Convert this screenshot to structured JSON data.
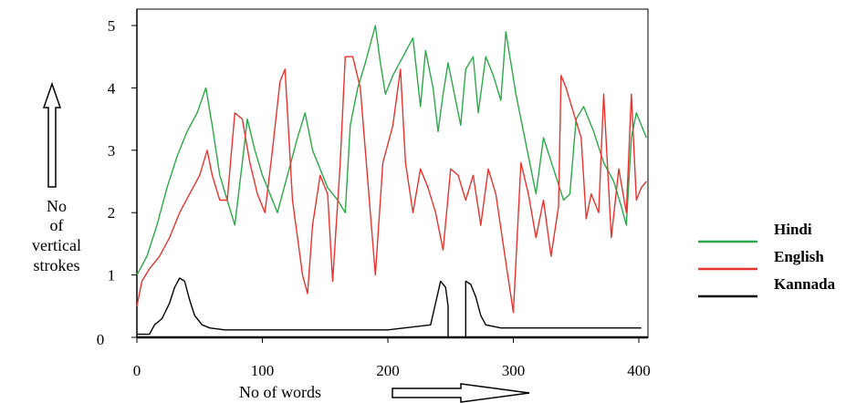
{
  "chart_data": {
    "type": "line",
    "ylabel_lines": [
      "No",
      "of",
      "vertical",
      "strokes"
    ],
    "xlabel": "No of words",
    "xlim": [
      0,
      400
    ],
    "ylim": [
      0,
      5
    ],
    "x_ticks": [
      {
        "value": 0,
        "label": "0"
      },
      {
        "value": 100,
        "label": "100"
      },
      {
        "value": 200,
        "label": "200"
      },
      {
        "value": 300,
        "label": "300"
      },
      {
        "value": 400,
        "label": "400"
      }
    ],
    "y_ticks": [
      {
        "value": 0,
        "label": "0"
      },
      {
        "value": 1,
        "label": "1"
      },
      {
        "value": 2,
        "label": "2"
      },
      {
        "value": 3,
        "label": "3"
      },
      {
        "value": 4,
        "label": "4"
      },
      {
        "value": 5,
        "label": "5"
      }
    ],
    "legend_position": "right",
    "grid": false,
    "series": [
      {
        "name": "Hindi",
        "color": "#2ca84a",
        "points": [
          [
            0,
            1.0
          ],
          [
            8,
            1.3
          ],
          [
            16,
            1.8
          ],
          [
            24,
            2.4
          ],
          [
            32,
            2.9
          ],
          [
            40,
            3.3
          ],
          [
            48,
            3.6
          ],
          [
            55,
            4.0
          ],
          [
            60,
            3.4
          ],
          [
            66,
            2.6
          ],
          [
            72,
            2.2
          ],
          [
            78,
            1.8
          ],
          [
            84,
            2.8
          ],
          [
            88,
            3.5
          ],
          [
            94,
            3.0
          ],
          [
            100,
            2.6
          ],
          [
            106,
            2.3
          ],
          [
            112,
            2.0
          ],
          [
            120,
            2.6
          ],
          [
            128,
            3.2
          ],
          [
            134,
            3.6
          ],
          [
            140,
            3.0
          ],
          [
            146,
            2.7
          ],
          [
            152,
            2.4
          ],
          [
            160,
            2.2
          ],
          [
            166,
            2.0
          ],
          [
            170,
            3.4
          ],
          [
            176,
            4.0
          ],
          [
            182,
            4.4
          ],
          [
            190,
            5.0
          ],
          [
            194,
            4.4
          ],
          [
            198,
            3.9
          ],
          [
            204,
            4.2
          ],
          [
            212,
            4.5
          ],
          [
            220,
            4.8
          ],
          [
            226,
            3.7
          ],
          [
            230,
            4.6
          ],
          [
            236,
            4.0
          ],
          [
            240,
            3.3
          ],
          [
            244,
            3.9
          ],
          [
            248,
            4.4
          ],
          [
            252,
            4.0
          ],
          [
            258,
            3.4
          ],
          [
            262,
            4.3
          ],
          [
            268,
            4.5
          ],
          [
            272,
            3.6
          ],
          [
            278,
            4.5
          ],
          [
            284,
            4.2
          ],
          [
            290,
            3.8
          ],
          [
            294,
            4.9
          ],
          [
            298,
            4.4
          ],
          [
            302,
            3.9
          ],
          [
            310,
            3.1
          ],
          [
            318,
            2.3
          ],
          [
            324,
            3.2
          ],
          [
            332,
            2.7
          ],
          [
            340,
            2.2
          ],
          [
            345,
            2.3
          ],
          [
            350,
            3.5
          ],
          [
            356,
            3.7
          ],
          [
            364,
            3.3
          ],
          [
            372,
            2.8
          ],
          [
            380,
            2.5
          ],
          [
            386,
            2.1
          ],
          [
            390,
            1.8
          ],
          [
            394,
            3.2
          ],
          [
            398,
            3.6
          ],
          [
            402,
            3.4
          ],
          [
            406,
            3.2
          ]
        ]
      },
      {
        "name": "English",
        "color": "#e8332e",
        "points": [
          [
            0,
            0.5
          ],
          [
            4,
            0.9
          ],
          [
            10,
            1.1
          ],
          [
            18,
            1.3
          ],
          [
            26,
            1.6
          ],
          [
            34,
            2.0
          ],
          [
            42,
            2.3
          ],
          [
            50,
            2.6
          ],
          [
            56,
            3.0
          ],
          [
            60,
            2.6
          ],
          [
            66,
            2.2
          ],
          [
            72,
            2.2
          ],
          [
            78,
            3.6
          ],
          [
            84,
            3.5
          ],
          [
            90,
            2.8
          ],
          [
            96,
            2.3
          ],
          [
            102,
            2.0
          ],
          [
            108,
            3.0
          ],
          [
            114,
            4.1
          ],
          [
            118,
            4.3
          ],
          [
            124,
            2.2
          ],
          [
            128,
            1.6
          ],
          [
            132,
            1.0
          ],
          [
            136,
            0.7
          ],
          [
            140,
            1.8
          ],
          [
            146,
            2.6
          ],
          [
            152,
            2.3
          ],
          [
            156,
            0.9
          ],
          [
            162,
            2.8
          ],
          [
            166,
            4.5
          ],
          [
            172,
            4.5
          ],
          [
            178,
            4.0
          ],
          [
            182,
            3.0
          ],
          [
            186,
            2.0
          ],
          [
            190,
            1.0
          ],
          [
            196,
            2.8
          ],
          [
            204,
            3.4
          ],
          [
            210,
            4.3
          ],
          [
            214,
            2.8
          ],
          [
            220,
            2.0
          ],
          [
            226,
            2.7
          ],
          [
            232,
            2.4
          ],
          [
            238,
            2.0
          ],
          [
            244,
            1.4
          ],
          [
            250,
            2.7
          ],
          [
            256,
            2.6
          ],
          [
            262,
            2.2
          ],
          [
            268,
            2.6
          ],
          [
            274,
            1.8
          ],
          [
            280,
            2.7
          ],
          [
            286,
            2.3
          ],
          [
            294,
            1.2
          ],
          [
            300,
            0.4
          ],
          [
            306,
            2.8
          ],
          [
            312,
            2.3
          ],
          [
            318,
            1.6
          ],
          [
            324,
            2.2
          ],
          [
            330,
            1.3
          ],
          [
            336,
            2.1
          ],
          [
            338,
            4.2
          ],
          [
            342,
            4.0
          ],
          [
            348,
            3.6
          ],
          [
            354,
            3.2
          ],
          [
            358,
            1.9
          ],
          [
            362,
            2.3
          ],
          [
            368,
            2.0
          ],
          [
            372,
            3.9
          ],
          [
            378,
            1.6
          ],
          [
            384,
            2.7
          ],
          [
            390,
            2.0
          ],
          [
            394,
            3.9
          ],
          [
            398,
            2.2
          ],
          [
            402,
            2.4
          ],
          [
            406,
            2.5
          ]
        ]
      },
      {
        "name": "Kannada",
        "color": "#000000",
        "segments": [
          [
            [
              0,
              0.05
            ],
            [
              10,
              0.05
            ],
            [
              14,
              0.2
            ],
            [
              20,
              0.3
            ],
            [
              26,
              0.55
            ],
            [
              30,
              0.8
            ],
            [
              34,
              0.95
            ],
            [
              38,
              0.9
            ],
            [
              42,
              0.6
            ],
            [
              46,
              0.35
            ],
            [
              52,
              0.2
            ],
            [
              58,
              0.15
            ],
            [
              70,
              0.12
            ],
            [
              100,
              0.12
            ],
            [
              150,
              0.12
            ],
            [
              200,
              0.12
            ],
            [
              234,
              0.2
            ],
            [
              238,
              0.55
            ],
            [
              242,
              0.9
            ],
            [
              246,
              0.8
            ],
            [
              248,
              0.5
            ],
            [
              248,
              0.0
            ]
          ],
          [
            [
              262,
              0.0
            ],
            [
              262,
              0.9
            ],
            [
              266,
              0.85
            ],
            [
              270,
              0.65
            ],
            [
              274,
              0.35
            ],
            [
              278,
              0.2
            ],
            [
              290,
              0.15
            ],
            [
              340,
              0.15
            ],
            [
              380,
              0.15
            ],
            [
              402,
              0.15
            ]
          ]
        ]
      }
    ]
  }
}
